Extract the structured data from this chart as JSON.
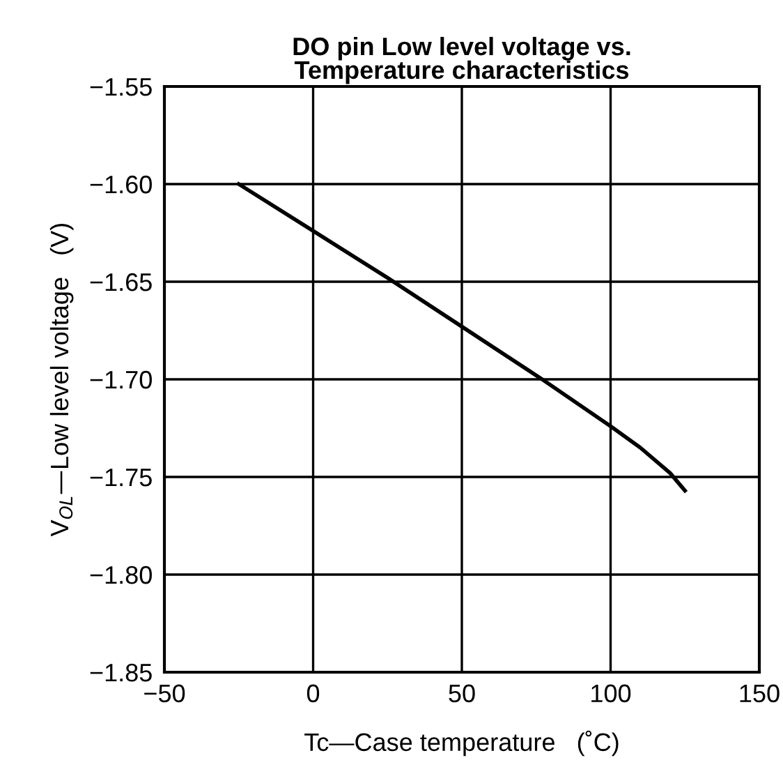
{
  "chart_data": {
    "type": "line",
    "title": "DO pin Low level voltage vs.\nTemperature characteristics",
    "xlabel": "Tc—Case temperature   (˚C)",
    "ylabel": "V$_{OL}$—Low level voltage   (V)",
    "x": [
      -25,
      0,
      25,
      50,
      77,
      100,
      110,
      120,
      125
    ],
    "series": [
      {
        "color": "#000000",
        "values": [
          -1.6,
          -1.624,
          -1.648,
          -1.673,
          -1.7,
          -1.724,
          -1.735,
          -1.748,
          -1.757
        ]
      }
    ],
    "xlim": [
      -50,
      150
    ],
    "xticks": [
      {
        "value": -50,
        "label": "−50"
      },
      0,
      50,
      100,
      150
    ],
    "ylim": [
      -1.85,
      -1.55
    ],
    "yticks": [
      {
        "value": -1.85,
        "label": "−1.85"
      },
      {
        "value": -1.8,
        "label": "−1.80"
      },
      {
        "value": -1.75,
        "label": "−1.75"
      },
      {
        "value": -1.7,
        "label": "−1.70"
      },
      {
        "value": -1.65,
        "label": "−1.65"
      },
      {
        "value": -1.6,
        "label": "−1.60"
      },
      {
        "value": -1.55,
        "label": "−1.55"
      }
    ],
    "grid": true,
    "marker": "none",
    "line_style": "solid"
  }
}
